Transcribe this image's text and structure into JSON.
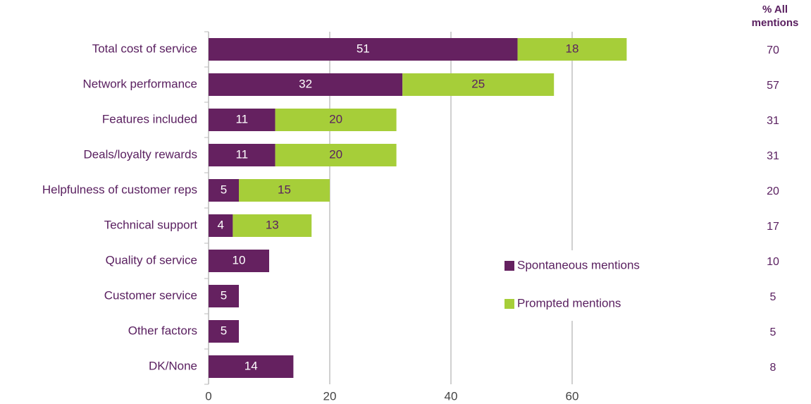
{
  "chart_data": {
    "type": "bar",
    "orientation": "horizontal",
    "stacked": true,
    "categories": [
      "Total cost of service",
      "Network performance",
      "Features included",
      "Deals/loyalty rewards",
      "Helpfulness of customer reps",
      "Technical support",
      "Quality of service",
      "Customer service",
      "Other factors",
      "DK/None"
    ],
    "series": [
      {
        "name": "Spontaneous mentions",
        "color": "#652160",
        "values": [
          51,
          32,
          11,
          11,
          5,
          4,
          10,
          5,
          5,
          14
        ]
      },
      {
        "name": "Prompted mentions",
        "color": "#a6ce39",
        "values": [
          18,
          25,
          20,
          20,
          15,
          13,
          null,
          null,
          null,
          null
        ]
      }
    ],
    "xlim": [
      0,
      70
    ],
    "xticks": [
      0,
      20,
      40,
      60
    ],
    "grid": true,
    "all_mentions_title": "% All mentions",
    "all_mentions": [
      70,
      57,
      31,
      31,
      20,
      17,
      10,
      5,
      5,
      8
    ]
  }
}
